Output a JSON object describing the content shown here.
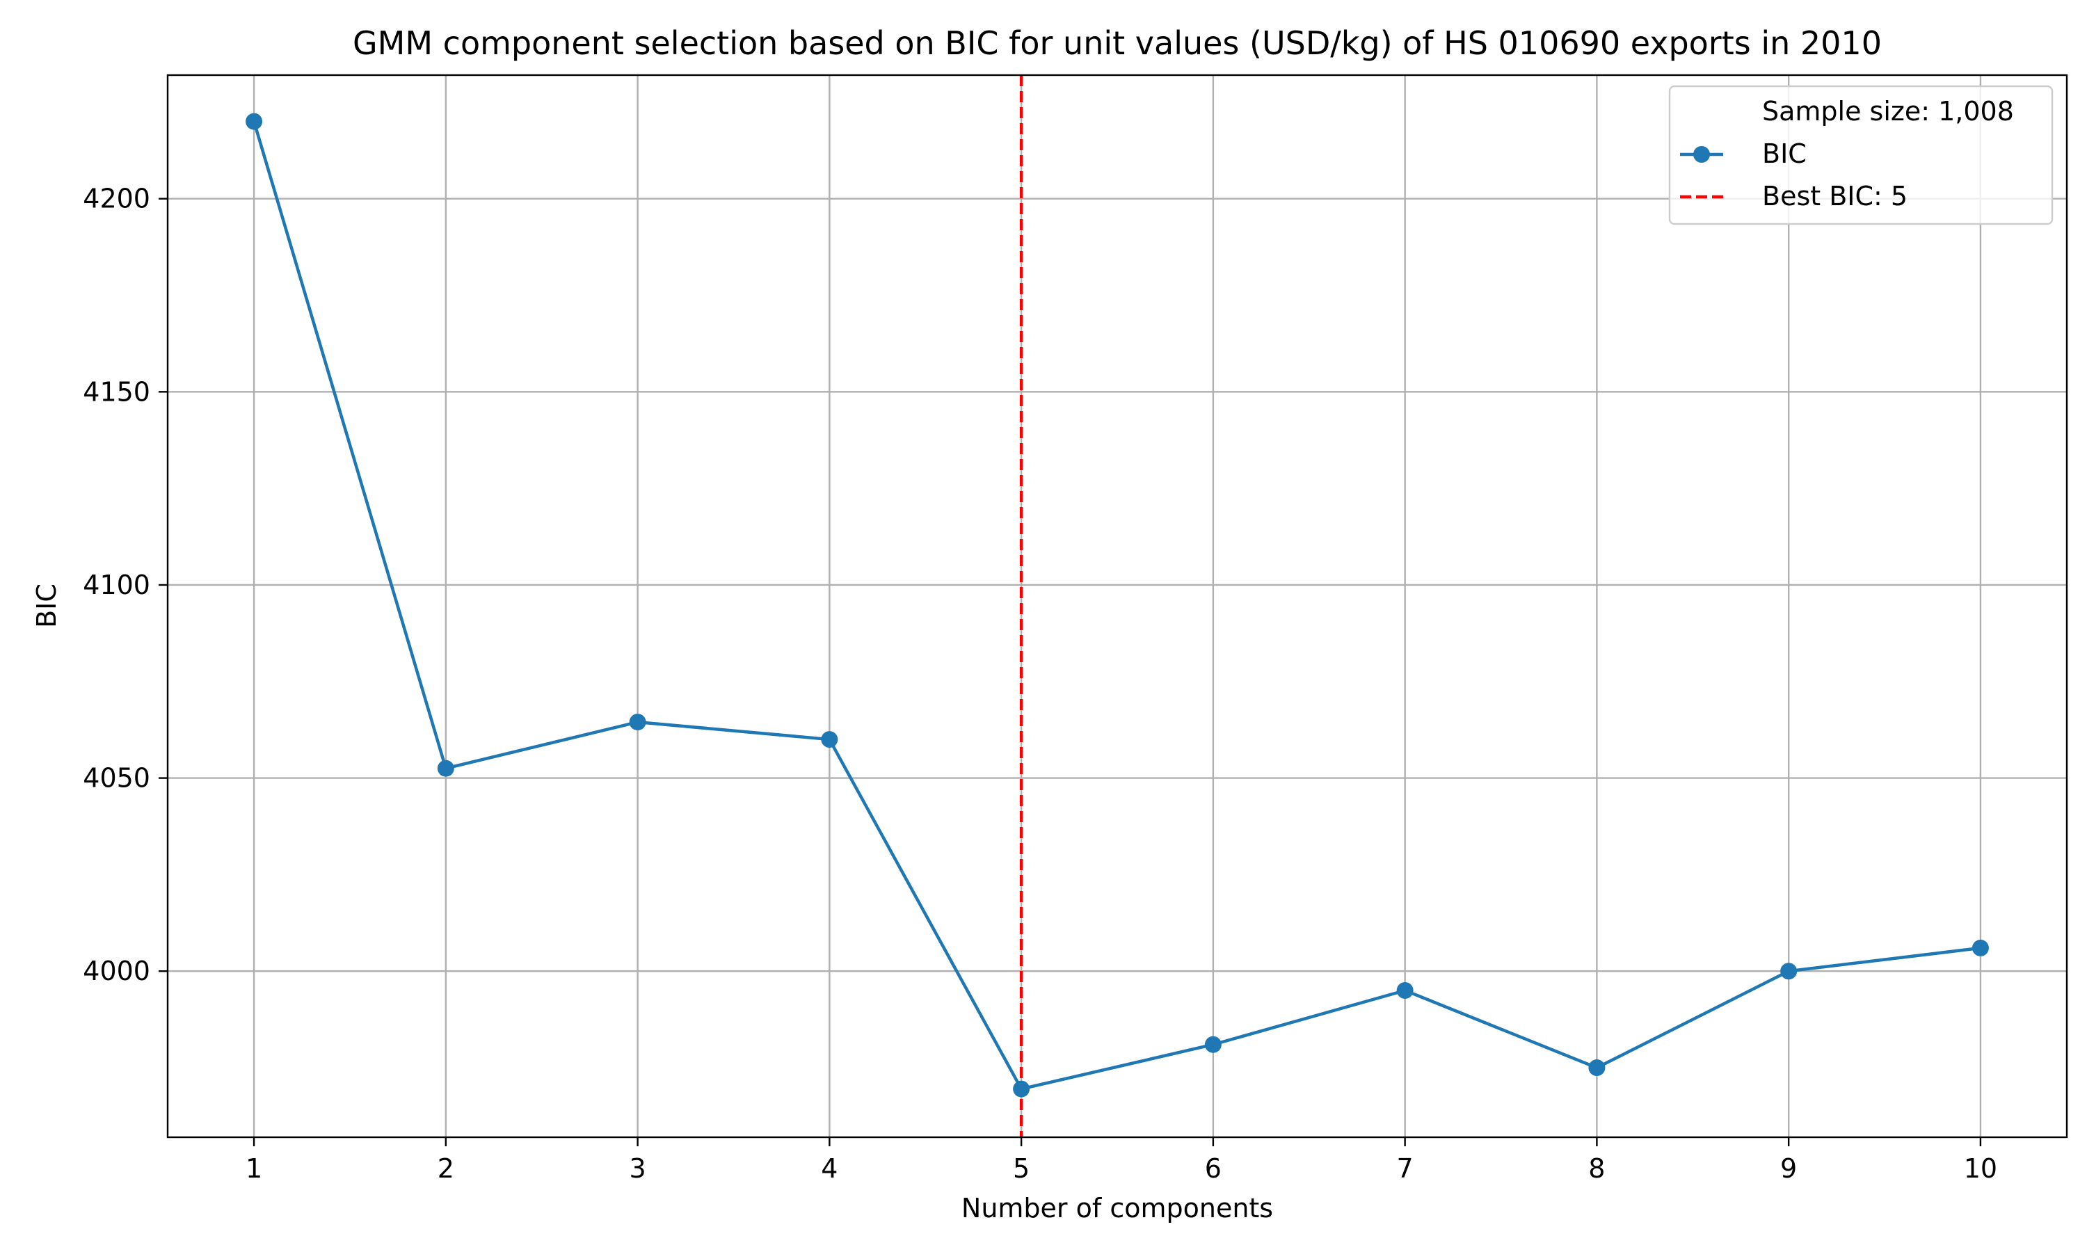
{
  "chart_data": {
    "type": "line",
    "title": "GMM component selection based on BIC for unit values (USD/kg) of HS 010690 exports in 2010",
    "xlabel": "Number of components",
    "ylabel": "BIC",
    "x": [
      1,
      2,
      3,
      4,
      5,
      6,
      7,
      8,
      9,
      10
    ],
    "x_ticks": [
      "1",
      "2",
      "3",
      "4",
      "5",
      "6",
      "7",
      "8",
      "9",
      "10"
    ],
    "y_ticks": [
      "4000",
      "4050",
      "4100",
      "4150",
      "4200"
    ],
    "y_tick_values": [
      4000,
      4050,
      4100,
      4150,
      4200
    ],
    "xlim": [
      0.55,
      10.45
    ],
    "ylim": [
      3957,
      4232
    ],
    "grid": true,
    "series": [
      {
        "name": "BIC",
        "color": "#1f77b4",
        "values": [
          4220,
          4052.5,
          4064.5,
          4060,
          3969.5,
          3981,
          3995,
          3975,
          4000,
          4006
        ]
      }
    ],
    "reference_line": {
      "name": "Best BIC: 5",
      "x": 5,
      "color": "#ff0000",
      "style": "dashed"
    },
    "legend": {
      "position": "top-right",
      "entries": [
        "Sample size: 1,008",
        "BIC",
        "Best BIC: 5"
      ]
    }
  }
}
